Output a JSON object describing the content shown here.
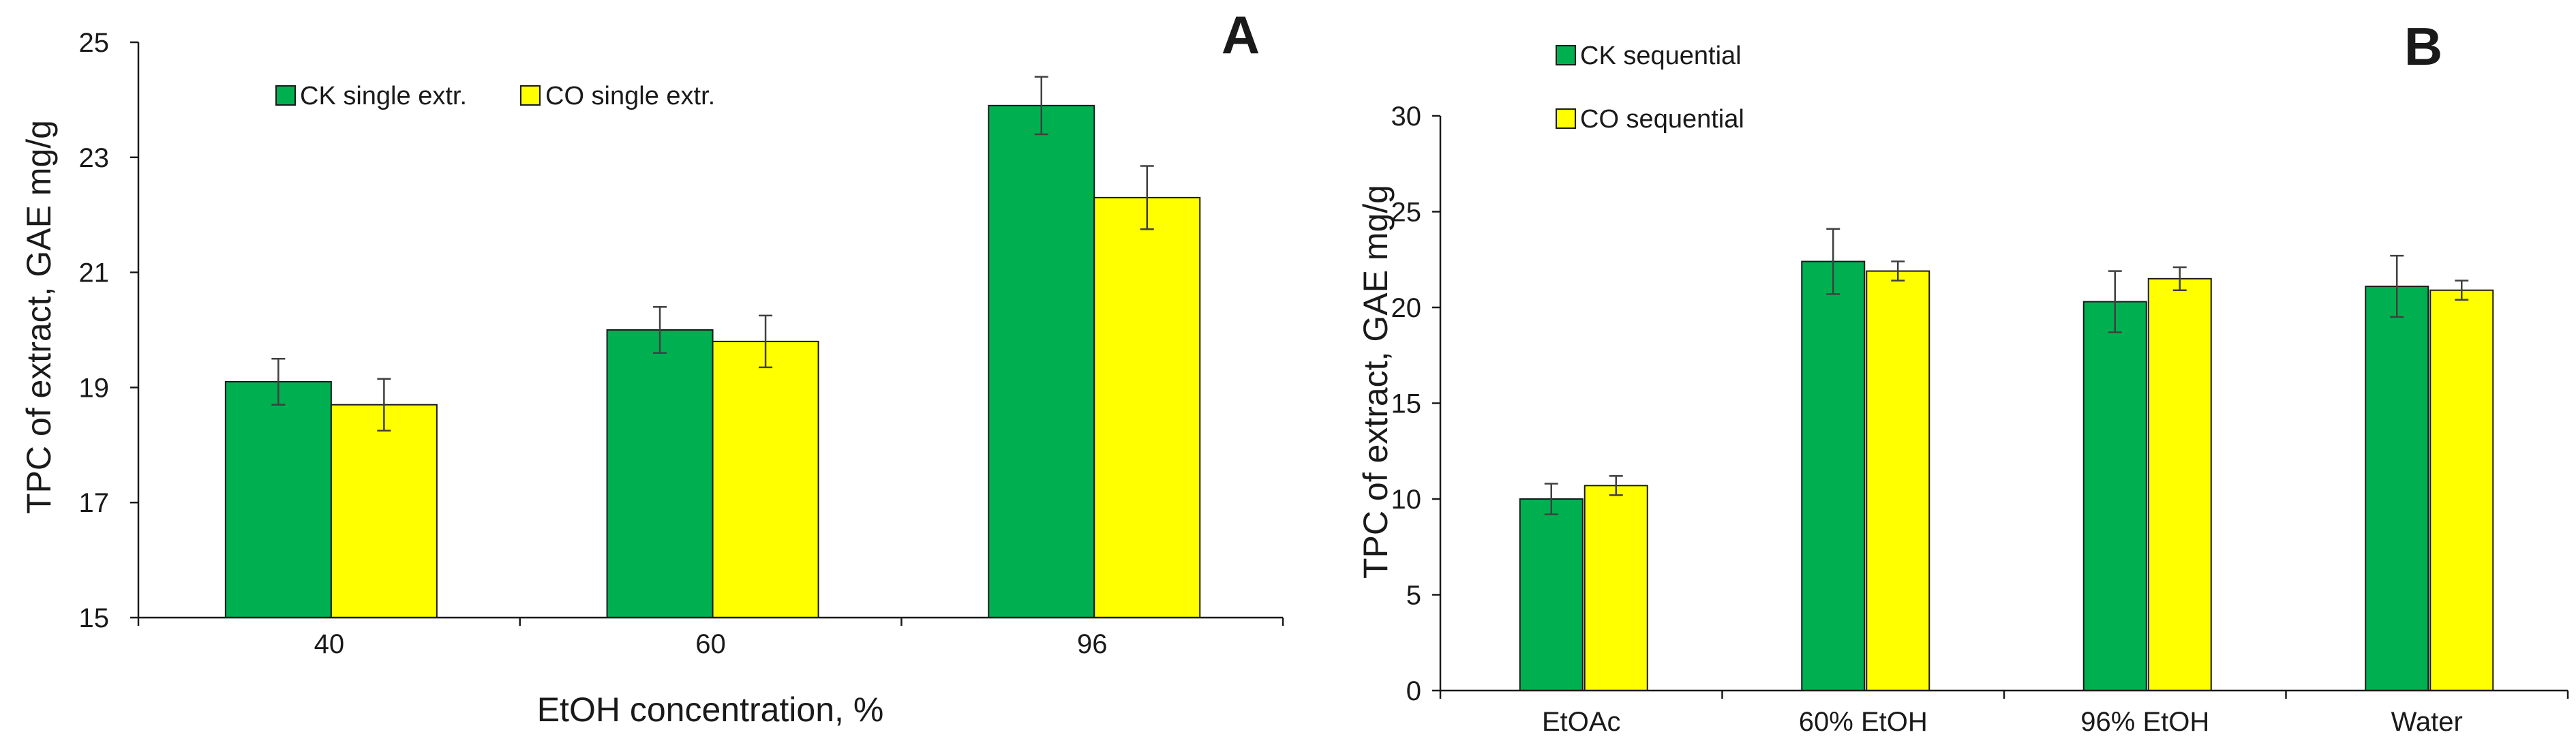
{
  "chart_data": [
    {
      "panel": "A",
      "type": "bar",
      "categories": [
        "40",
        "60",
        "96"
      ],
      "series": [
        {
          "name": "CK single extr.",
          "color": "#00b050",
          "values": [
            19.1,
            20.0,
            23.9
          ],
          "errors": [
            0.4,
            0.4,
            0.5
          ]
        },
        {
          "name": "CO single extr.",
          "color": "#ffff00",
          "values": [
            18.7,
            19.8,
            22.3
          ],
          "errors": [
            0.45,
            0.45,
            0.55
          ]
        }
      ],
      "title": "",
      "xlabel": "EtOH concentration,  %",
      "ylabel": "TPC of extract, GAE mg/g",
      "ylim": [
        15,
        25
      ],
      "yticks": [
        "15",
        "17",
        "19",
        "21",
        "23",
        "25"
      ],
      "legend_position": "top-left",
      "grid": false
    },
    {
      "panel": "B",
      "type": "bar",
      "categories": [
        "EtOAc",
        "60% EtOH",
        "96% EtOH",
        "Water"
      ],
      "series": [
        {
          "name": "CK sequential",
          "color": "#00b050",
          "values": [
            10.0,
            22.4,
            20.3,
            21.1
          ],
          "errors": [
            0.8,
            1.7,
            1.6,
            1.6
          ]
        },
        {
          "name": "CO sequential",
          "color": "#ffff00",
          "values": [
            10.7,
            21.9,
            21.5,
            20.9
          ],
          "errors": [
            0.5,
            0.5,
            0.6,
            0.5
          ]
        }
      ],
      "title": "",
      "xlabel": "",
      "ylabel": "TPC of extract, GAE mg/g",
      "ylim": [
        0,
        30
      ],
      "yticks": [
        "0",
        "5",
        "10",
        "15",
        "20",
        "25",
        "30"
      ],
      "legend_position": "top-left",
      "grid": false
    }
  ]
}
